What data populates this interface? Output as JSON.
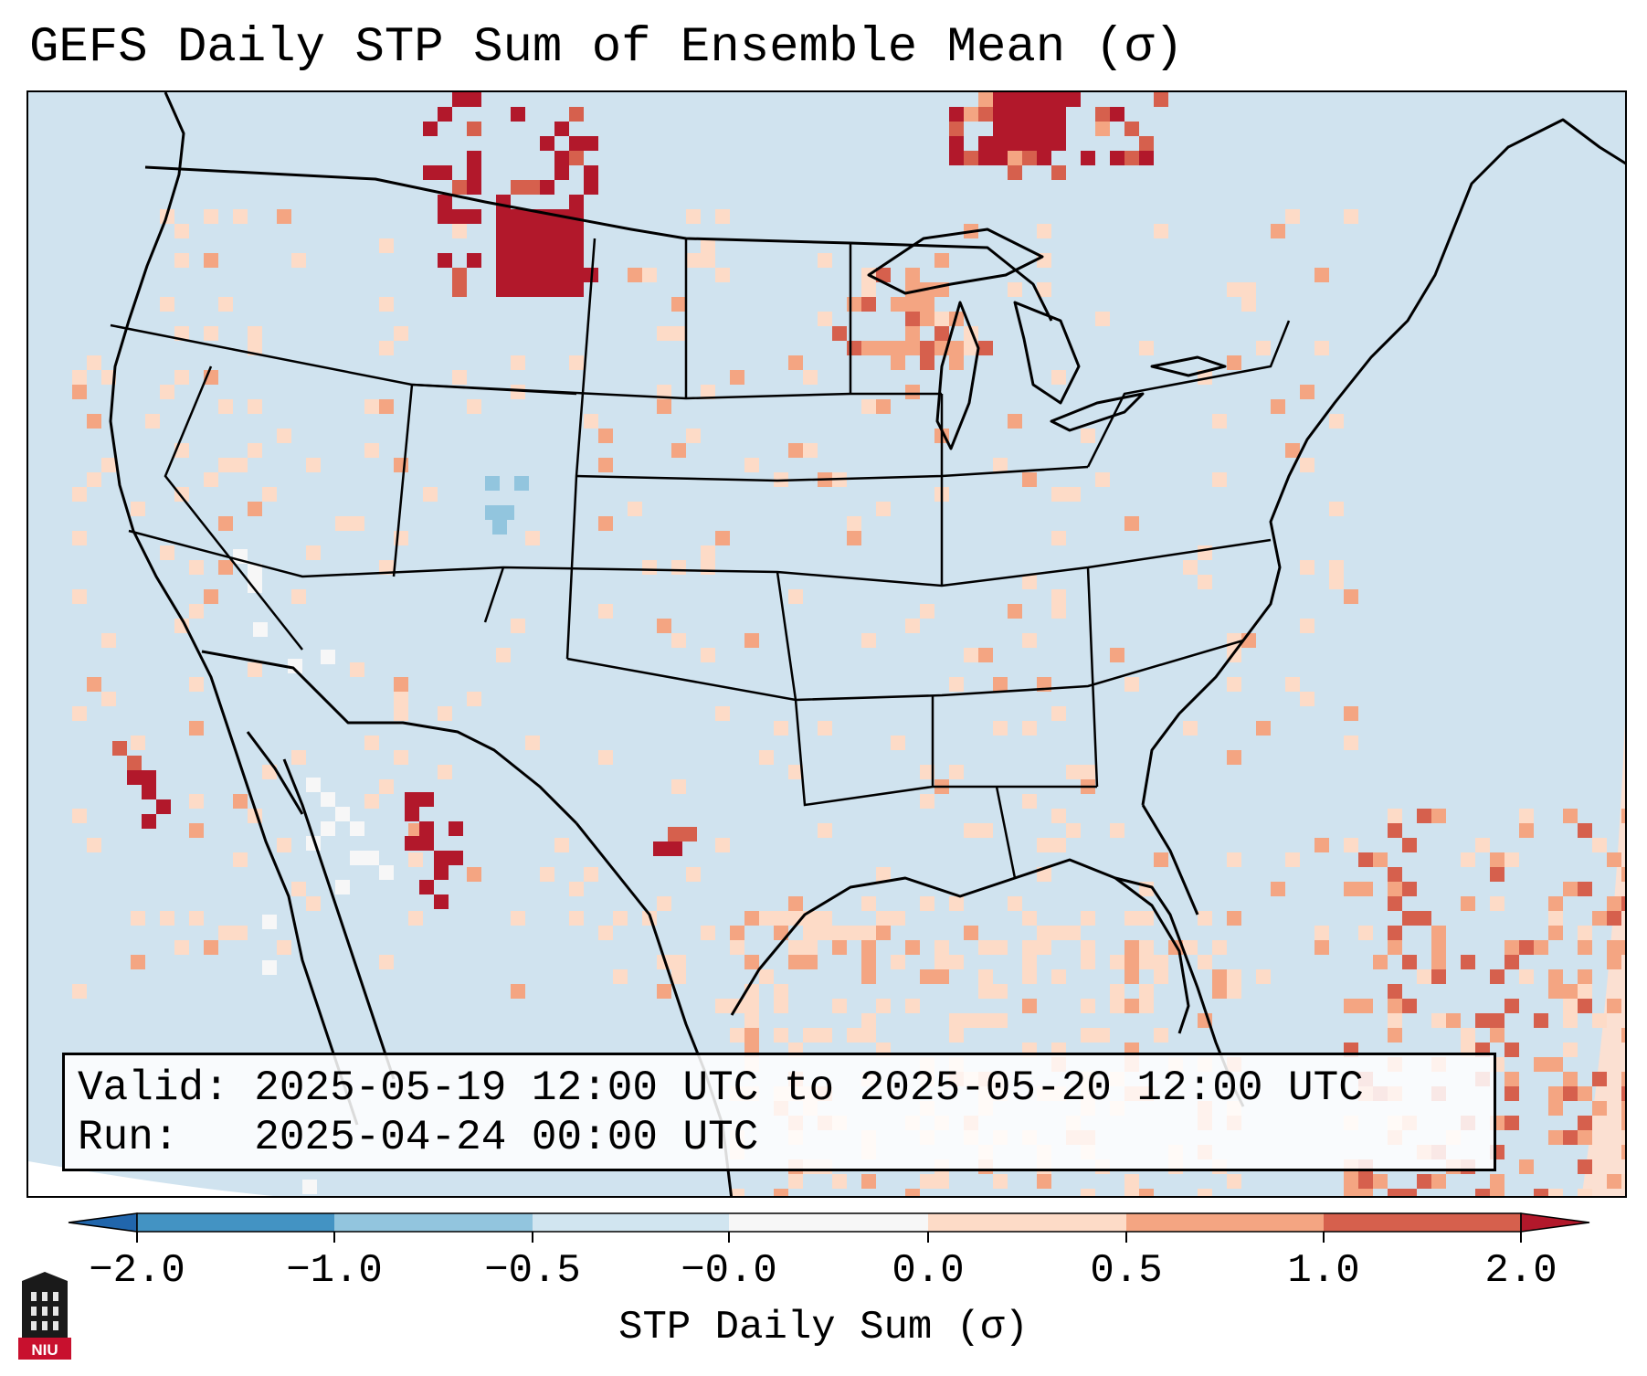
{
  "title": "GEFS Daily STP Sum of Ensemble Mean (σ)",
  "info": {
    "valid_label": "Valid:",
    "valid_value": "2025-05-19 12:00 UTC to 2025-05-20 12:00 UTC",
    "run_label": "Run:",
    "run_value": "2025-04-24 00:00 UTC"
  },
  "colorbar": {
    "label": "STP Daily Sum (σ)",
    "ticks": [
      "−2.0",
      "−1.0",
      "−0.5",
      "−0.0",
      "0.0",
      "0.5",
      "1.0",
      "2.0"
    ],
    "bins": [
      {
        "range": "< -2.0",
        "color": "#2166ac"
      },
      {
        "range": "-2.0 to -1.0",
        "color": "#4393c3"
      },
      {
        "range": "-1.0 to -0.5",
        "color": "#92c5de"
      },
      {
        "range": "-0.5 to -0.0",
        "color": "#d1e5f0"
      },
      {
        "range": "-0.0 to 0.0",
        "color": "#f7f7f7"
      },
      {
        "range": "0.0 to 0.5",
        "color": "#fddbc7"
      },
      {
        "range": "0.5 to 1.0",
        "color": "#f4a582"
      },
      {
        "range": "1.0 to 2.0",
        "color": "#d6604d"
      },
      {
        "range": "> 2.0",
        "color": "#b2182b"
      }
    ]
  },
  "map": {
    "projection": "Lambert conformal, CONUS",
    "background_color": "#d0e3ef",
    "anomaly_regions": [
      {
        "region": "Montana / North Dakota border",
        "level": "> 2.0"
      },
      {
        "region": "Northern Manitoba / Ontario",
        "level": "> 2.0"
      },
      {
        "region": "Upper Michigan / Wisconsin",
        "level": "0.5 to 1.0"
      },
      {
        "region": "Northern Mexico (Chihuahua)",
        "level": "> 2.0"
      },
      {
        "region": "South Texas",
        "level": "> 2.0"
      },
      {
        "region": "Gulf of Mexico",
        "level": "0.0 to 0.5"
      },
      {
        "region": "Western Atlantic / Caribbean",
        "level": "1.0 to 2.0"
      },
      {
        "region": "Pacific off Baja California",
        "level": "1.0 to 2.0"
      },
      {
        "region": "Colorado",
        "level": "-1.0 to -0.5"
      },
      {
        "region": "Baja California / Sonora",
        "level": "-0.0 to 0.0"
      }
    ]
  },
  "logo": {
    "text": "NIU"
  }
}
